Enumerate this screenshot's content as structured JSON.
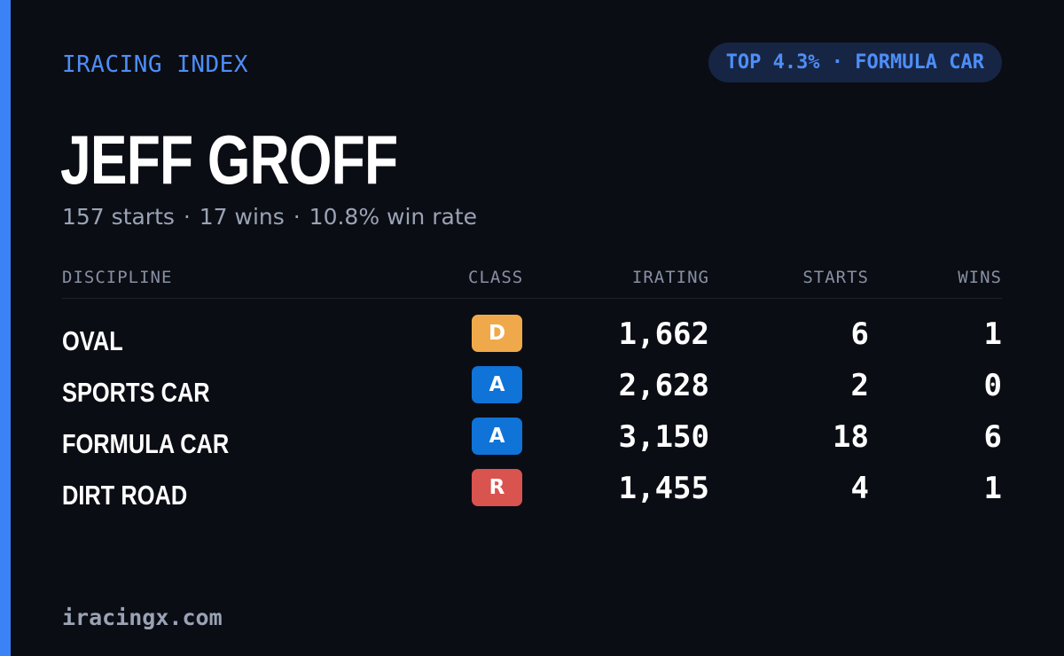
{
  "brand": "IRACING INDEX",
  "badge": "TOP 4.3% · FORMULA CAR",
  "driver": {
    "name": "JEFF GROFF",
    "starts": "157 starts",
    "wins": "17 wins",
    "win_rate": "10.8% win rate",
    "separator": "·"
  },
  "table": {
    "headers": {
      "discipline": "DISCIPLINE",
      "class": "CLASS",
      "irating": "IRATING",
      "starts": "STARTS",
      "wins": "WINS"
    },
    "rows": [
      {
        "discipline": "OVAL",
        "class": "D",
        "class_color": "#f0a94a",
        "irating": "1,662",
        "starts": "6",
        "wins": "1"
      },
      {
        "discipline": "SPORTS CAR",
        "class": "A",
        "class_color": "#0f73d8",
        "irating": "2,628",
        "starts": "2",
        "wins": "0"
      },
      {
        "discipline": "FORMULA CAR",
        "class": "A",
        "class_color": "#0f73d8",
        "irating": "3,150",
        "starts": "18",
        "wins": "6"
      },
      {
        "discipline": "DIRT ROAD",
        "class": "R",
        "class_color": "#d9534f",
        "irating": "1,455",
        "starts": "4",
        "wins": "1"
      }
    ]
  },
  "footer": "iracingx.com",
  "colors": {
    "background": "#0b0d14",
    "accent": "#3b82f6",
    "badge_bg": "#172544"
  }
}
